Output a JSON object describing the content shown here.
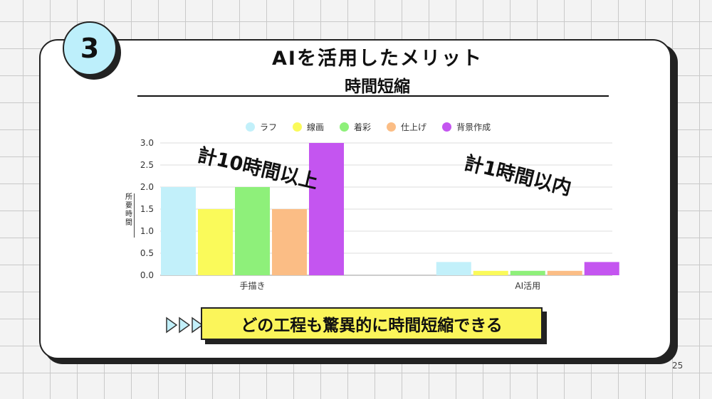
{
  "slide": {
    "number": "3",
    "title": "AIを活用したメリット",
    "subtitle": "時間短縮",
    "annotation_left": "計10時間以上",
    "annotation_right": "計1時間以内",
    "callout": "どの工程も驚異的に時間短縮できる",
    "page_number": "25"
  },
  "chart_data": {
    "type": "bar",
    "categories": [
      "手描き",
      "AI活用"
    ],
    "series": [
      {
        "name": "ラフ",
        "color": "#c2f0fa",
        "values": [
          2.0,
          0.3
        ]
      },
      {
        "name": "線画",
        "color": "#fafa5a",
        "values": [
          1.5,
          0.1
        ]
      },
      {
        "name": "着彩",
        "color": "#8ef07a",
        "values": [
          2.0,
          0.1
        ]
      },
      {
        "name": "仕上げ",
        "color": "#fbbd85",
        "values": [
          1.5,
          0.1
        ]
      },
      {
        "name": "背景作成",
        "color": "#c455f0",
        "values": [
          3.0,
          0.3
        ]
      }
    ],
    "ylabel": "所要時間",
    "ylim": [
      0,
      3.0
    ],
    "yticks": [
      "0.0",
      "0.5",
      "1.0",
      "1.5",
      "2.0",
      "2.5",
      "3.0"
    ],
    "grid": true,
    "legend": "top"
  }
}
